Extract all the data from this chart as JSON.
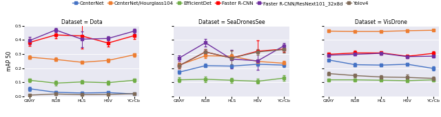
{
  "legend_labels": [
    "CenterNet",
    "CenterNet/Hourglass104",
    "EfficientDet",
    "Faster R-CNN",
    "Faster R-CNN/ResNext101_32x8d",
    "Yolov4"
  ],
  "legend_colors": [
    "#4472c4",
    "#ed7d31",
    "#70ad47",
    "#ff0000",
    "#7030a0",
    "#7f6a57"
  ],
  "x_labels": [
    "GRAY",
    "RGB",
    "HLS",
    "HSV",
    "YCrCb"
  ],
  "subplot_titles": [
    "Dataset = Dota",
    "Dataset = SeaDronesSee",
    "Dataset = VisDrone"
  ],
  "ylabel": "mAP 50",
  "datasets": {
    "Dota": {
      "CenterNet": {
        "y": [
          0.055,
          0.03,
          0.025,
          0.028,
          0.018
        ],
        "yerr": [
          0.015,
          0.008,
          0.008,
          0.008,
          0.005
        ]
      },
      "CenterNet/Hourglass104": {
        "y": [
          0.278,
          0.262,
          0.242,
          0.255,
          0.295
        ],
        "yerr": [
          0.012,
          0.012,
          0.012,
          0.012,
          0.012
        ]
      },
      "EfficientDet": {
        "y": [
          0.115,
          0.095,
          0.103,
          0.098,
          0.115
        ],
        "yerr": [
          0.012,
          0.018,
          0.012,
          0.014,
          0.012
        ]
      },
      "Faster R-CNN": {
        "y": [
          0.382,
          0.435,
          0.428,
          0.378,
          0.43
        ],
        "yerr": [
          0.025,
          0.025,
          0.09,
          0.025,
          0.025
        ]
      },
      "Faster R-CNN/ResNext101_32x8d": {
        "y": [
          0.395,
          0.47,
          0.405,
          0.41,
          0.462
        ],
        "yerr": [
          0.025,
          0.015,
          0.055,
          0.015,
          0.015
        ]
      },
      "Yolov4": {
        "y": [
          0.01,
          0.018,
          0.013,
          0.015,
          0.02
        ],
        "yerr": [
          0.006,
          0.006,
          0.006,
          0.006,
          0.006
        ]
      }
    },
    "SeaDronesSee": {
      "CenterNet": {
        "y": [
          0.172,
          0.218,
          0.215,
          0.228,
          0.222
        ],
        "yerr": [
          0.012,
          0.012,
          0.012,
          0.012,
          0.012
        ]
      },
      "CenterNet/Hourglass104": {
        "y": [
          0.222,
          0.288,
          0.285,
          0.248,
          0.235
        ],
        "yerr": [
          0.015,
          0.015,
          0.015,
          0.015,
          0.015
        ]
      },
      "EfficientDet": {
        "y": [
          0.118,
          0.122,
          0.115,
          0.108,
          0.13
        ],
        "yerr": [
          0.018,
          0.018,
          0.018,
          0.018,
          0.018
        ]
      },
      "Faster R-CNN": {
        "y": [
          0.218,
          0.315,
          0.272,
          0.32,
          0.335
        ],
        "yerr": [
          0.02,
          0.02,
          0.05,
          0.075,
          0.02
        ]
      },
      "Faster R-CNN/ResNext101_32x8d": {
        "y": [
          0.272,
          0.38,
          0.265,
          0.252,
          0.358
        ],
        "yerr": [
          0.02,
          0.028,
          0.065,
          0.065,
          0.02
        ]
      },
      "Yolov4": {
        "y": [
          0.218,
          0.315,
          0.272,
          0.315,
          0.332
        ],
        "yerr": [
          0.02,
          0.02,
          0.05,
          0.02,
          0.02
        ]
      }
    },
    "VisDrone": {
      "CenterNet": {
        "y": [
          0.258,
          0.225,
          0.222,
          0.228,
          0.198
        ],
        "yerr": [
          0.01,
          0.01,
          0.01,
          0.01,
          0.015
        ]
      },
      "CenterNet/Hourglass104": {
        "y": [
          0.462,
          0.46,
          0.46,
          0.465,
          0.468
        ],
        "yerr": [
          0.006,
          0.006,
          0.006,
          0.01,
          0.006
        ]
      },
      "EfficientDet": {
        "y": [
          0.118,
          0.118,
          0.115,
          0.112,
          0.118
        ],
        "yerr": [
          0.01,
          0.01,
          0.01,
          0.012,
          0.01
        ]
      },
      "Faster R-CNN": {
        "y": [
          0.298,
          0.308,
          0.308,
          0.285,
          0.305
        ],
        "yerr": [
          0.012,
          0.015,
          0.012,
          0.012,
          0.012
        ]
      },
      "Faster R-CNN/ResNext101_32x8d": {
        "y": [
          0.292,
          0.298,
          0.305,
          0.282,
          0.285
        ],
        "yerr": [
          0.01,
          0.01,
          0.01,
          0.01,
          0.01
        ]
      },
      "Yolov4": {
        "y": [
          0.162,
          0.148,
          0.138,
          0.135,
          0.128
        ],
        "yerr": [
          0.012,
          0.012,
          0.012,
          0.018,
          0.012
        ]
      }
    }
  },
  "ylim": [
    0.0,
    0.5
  ],
  "yticks": [
    0.0,
    0.1,
    0.2,
    0.3,
    0.4,
    0.5
  ],
  "background_color": "#e8e8f2",
  "fig_background": "#ffffff",
  "marker": "s",
  "markersize": 2.5,
  "linewidth": 1.0,
  "capsize": 1.5,
  "elinewidth": 0.7,
  "title_fontsize": 5.5,
  "tick_fontsize": 4.5,
  "ylabel_fontsize": 5.5,
  "legend_fontsize": 5.0
}
